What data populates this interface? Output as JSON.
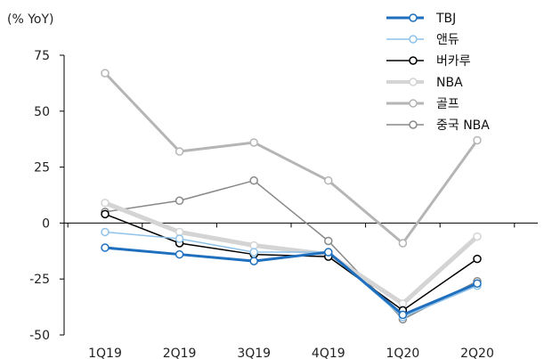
{
  "chart_data": {
    "type": "line",
    "unit_label": "(% YoY)",
    "categories": [
      "1Q19",
      "2Q19",
      "3Q19",
      "4Q19",
      "1Q20",
      "2Q20"
    ],
    "ylim": [
      -50,
      75
    ],
    "yticks": [
      75,
      50,
      25,
      0,
      -25,
      -50
    ],
    "grid": false,
    "legend_position": "top-right",
    "series": [
      {
        "name": "TBJ",
        "values": [
          -11,
          -14,
          -17,
          -13,
          -41,
          -27
        ],
        "color": "#1f6fbf",
        "marker_fill": "#ffffff"
      },
      {
        "name": "앤듀",
        "values": [
          -4,
          -7,
          -13,
          -13,
          -42,
          -28
        ],
        "color": "#8ec2ea",
        "marker_fill": "#ffffff"
      },
      {
        "name": "버카루",
        "values": [
          4,
          -9,
          -14,
          -15,
          -39,
          -16
        ],
        "color": "#000000",
        "marker_fill": "#ffffff"
      },
      {
        "name": "NBA",
        "values": [
          9,
          -4,
          -10,
          -14,
          -36,
          -6
        ],
        "color": "#d4d4d4",
        "marker_fill": "#ffffff"
      },
      {
        "name": "골프",
        "values": [
          67,
          32,
          36,
          19,
          -9,
          37
        ],
        "color": "#b5b5b5",
        "marker_fill": "#ffffff"
      },
      {
        "name": "중국 NBA",
        "values": [
          5,
          10,
          19,
          -8,
          -43,
          -26
        ],
        "color": "#888888",
        "marker_fill": "#ffffff"
      }
    ]
  }
}
